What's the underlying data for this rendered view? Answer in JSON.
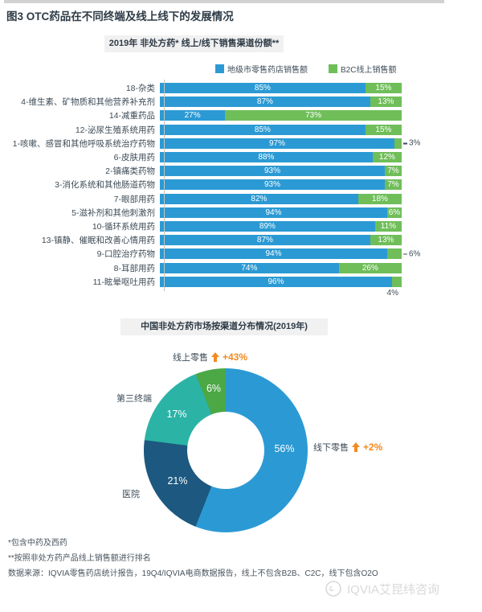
{
  "page": {
    "title": "图3 OTC药品在不同终端及线上线下的发展情况"
  },
  "chart_data": [
    {
      "type": "bar",
      "orientation": "horizontal",
      "stacked": true,
      "title": "2019年 非处方药* 线上/线下销售渠道份额**",
      "categories": [
        "18-杂类",
        "4-维生素、矿物质和其他营养补充剂",
        "14-减重药品",
        "12-泌尿生殖系统用药",
        "1-咳嗽、感冒和其他呼吸系统治疗药物",
        "6-皮肤用药",
        "2-镇痛类药物",
        "3-消化系统和其他肠道药物",
        "7-眼部用药",
        "5-滋补剂和其他刺激剂",
        "10-循环系统用药",
        "13-镇静、催眠和改善心情用药",
        "9-口腔治疗药物",
        "8-耳部用药",
        "11-眩晕呕吐用药"
      ],
      "series": [
        {
          "name": "地级市零售药店销售额",
          "color": "#2b9ad4",
          "values": [
            85,
            87,
            27,
            85,
            97,
            88,
            93,
            93,
            82,
            94,
            89,
            87,
            94,
            74,
            96
          ]
        },
        {
          "name": "B2C线上销售额",
          "color": "#6fbe59",
          "values": [
            15,
            13,
            73,
            15,
            3,
            12,
            7,
            7,
            18,
            6,
            11,
            13,
            6,
            26,
            4
          ]
        }
      ],
      "online_label_placement": [
        "inside",
        "inside",
        "inside",
        "inside",
        "outside",
        "inside",
        "inside",
        "inside",
        "inside",
        "inside",
        "inside",
        "inside",
        "outside",
        "inside",
        "below"
      ],
      "value_format": "percent",
      "xlim": [
        0,
        100
      ],
      "legend_position": "top",
      "grid": false
    },
    {
      "type": "pie",
      "subtype": "donut",
      "title": "中国非处方药市场按渠道分布情况(2019年)",
      "labels": [
        "线下零售",
        "医院",
        "第三终端",
        "线上零售"
      ],
      "values": [
        56,
        21,
        17,
        6
      ],
      "colors": [
        "#2b9ad4",
        "#1c587f",
        "#2bb3a6",
        "#4ba845"
      ],
      "start_angle_deg": 0,
      "direction": "clockwise",
      "annotations": [
        {
          "label": "线上零售",
          "growth": "+43%"
        },
        {
          "label": "线下零售",
          "growth": "+2%"
        }
      ]
    }
  ],
  "donut": {
    "value_labels": [
      "56%",
      "21%",
      "17%",
      "6%"
    ],
    "online_label": "线上零售",
    "online_growth": "+43%",
    "offline_label": "线下零售",
    "offline_growth": "+2%",
    "third_label": "第三终端",
    "hospital_label": "医院"
  },
  "colors": {
    "bar_offline_blue": "#2b9ad4",
    "bar_online_green": "#6fbe59",
    "donut_offline_blue": "#2b9ad4",
    "donut_hospital_navy": "#1c587f",
    "donut_third_teal": "#2bb3a6",
    "donut_online_green": "#4ba845",
    "growth_orange": "#f28a1e"
  },
  "footnotes": [
    "*包含中药及西药",
    "**按照非处方药产品线上销售额进行排名",
    "数据来源：IQVIA零售药店统计报告，19Q4/IQVIA电商数据报告，线上不包含B2B、C2C，线下包含O2O"
  ],
  "watermark": "IQVIA艾昆纬咨询"
}
